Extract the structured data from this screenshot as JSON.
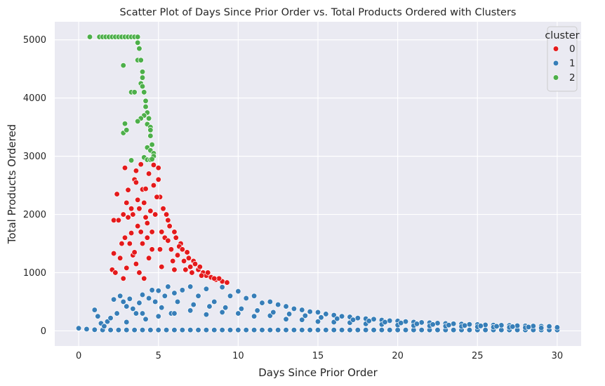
{
  "chart_data": {
    "type": "scatter",
    "title": "Scatter Plot of Days Since Prior Order vs. Total Products Ordered with Clusters",
    "xlabel": "Days Since Prior Order",
    "ylabel": "Total Products Ordered",
    "xlim": [
      -1.5,
      31.5
    ],
    "ylim": [
      -260,
      5310
    ],
    "xticks": [
      0,
      5,
      10,
      15,
      20,
      25,
      30
    ],
    "yticks": [
      0,
      1000,
      2000,
      3000,
      4000,
      5000
    ],
    "grid": true,
    "legend": {
      "title": "cluster",
      "placement": "top-right",
      "entries": [
        "0",
        "1",
        "2"
      ]
    },
    "colors": {
      "0": "#e41a1c",
      "1": "#377eb8",
      "2": "#4daf4a"
    },
    "series": [
      {
        "name": "0",
        "points": [
          [
            2.2,
            1900
          ],
          [
            2.8,
            2000
          ],
          [
            2.9,
            2800
          ],
          [
            2.4,
            2350
          ],
          [
            2.2,
            1330
          ],
          [
            2.1,
            1050
          ],
          [
            2.3,
            1000
          ],
          [
            2.6,
            1250
          ],
          [
            2.8,
            900
          ],
          [
            3.0,
            1080
          ],
          [
            3.2,
            1500
          ],
          [
            3.3,
            1680
          ],
          [
            3.5,
            2600
          ],
          [
            3.6,
            2550
          ],
          [
            3.7,
            2250
          ],
          [
            3.8,
            2100
          ],
          [
            3.9,
            2860
          ],
          [
            4.0,
            2430
          ],
          [
            4.2,
            2440
          ],
          [
            4.3,
            1850
          ],
          [
            4.5,
            2060
          ],
          [
            3.1,
            2420
          ],
          [
            2.5,
            1900
          ],
          [
            2.7,
            1500
          ],
          [
            3.4,
            1300
          ],
          [
            3.6,
            1150
          ],
          [
            3.8,
            1000
          ],
          [
            4.1,
            900
          ],
          [
            4.4,
            1250
          ],
          [
            4.6,
            1700
          ],
          [
            4.8,
            2000
          ],
          [
            5.0,
            2600
          ],
          [
            5.0,
            2800
          ],
          [
            5.1,
            2300
          ],
          [
            5.3,
            2100
          ],
          [
            5.2,
            1700
          ],
          [
            5.4,
            1600
          ],
          [
            5.6,
            1900
          ],
          [
            5.8,
            1400
          ],
          [
            6.0,
            1700
          ],
          [
            6.2,
            1300
          ],
          [
            6.4,
            1500
          ],
          [
            6.6,
            1200
          ],
          [
            6.8,
            1350
          ],
          [
            7.0,
            1100
          ],
          [
            7.2,
            1200
          ],
          [
            7.5,
            1050
          ],
          [
            7.8,
            1000
          ],
          [
            8.0,
            950
          ],
          [
            8.3,
            920
          ],
          [
            8.6,
            880
          ],
          [
            9.0,
            850
          ],
          [
            3.9,
            1700
          ],
          [
            4.0,
            1500
          ],
          [
            4.2,
            1950
          ],
          [
            3.7,
            1800
          ],
          [
            3.3,
            2100
          ],
          [
            3.1,
            1950
          ],
          [
            3.0,
            2200
          ],
          [
            2.9,
            1600
          ],
          [
            4.7,
            2500
          ],
          [
            4.9,
            2300
          ],
          [
            5.5,
            2000
          ],
          [
            5.7,
            1800
          ],
          [
            6.1,
            1600
          ],
          [
            6.3,
            1450
          ],
          [
            6.5,
            1400
          ],
          [
            6.9,
            1250
          ],
          [
            7.3,
            1150
          ],
          [
            7.6,
            1100
          ],
          [
            8.1,
            1000
          ],
          [
            8.8,
            900
          ],
          [
            9.3,
            830
          ],
          [
            5.1,
            1400
          ],
          [
            5.9,
            1200
          ],
          [
            6.7,
            1050
          ],
          [
            7.1,
            1000
          ],
          [
            7.7,
            950
          ],
          [
            8.5,
            900
          ],
          [
            3.5,
            1350
          ],
          [
            4.3,
            1600
          ],
          [
            4.6,
            1400
          ],
          [
            5.2,
            1100
          ],
          [
            5.6,
            1550
          ],
          [
            6.0,
            1050
          ],
          [
            3.4,
            2000
          ],
          [
            4.1,
            2200
          ],
          [
            4.4,
            2700
          ],
          [
            4.7,
            2850
          ],
          [
            3.6,
            2750
          ]
        ]
      },
      {
        "name": "1",
        "points": [
          [
            0,
            45
          ],
          [
            0.5,
            30
          ],
          [
            1.0,
            20
          ],
          [
            1.5,
            15
          ],
          [
            2.0,
            15
          ],
          [
            2.5,
            15
          ],
          [
            3.0,
            15
          ],
          [
            3.5,
            15
          ],
          [
            4.0,
            15
          ],
          [
            4.5,
            15
          ],
          [
            5.0,
            15
          ],
          [
            5.5,
            15
          ],
          [
            6.0,
            15
          ],
          [
            6.5,
            15
          ],
          [
            7.0,
            15
          ],
          [
            7.5,
            15
          ],
          [
            8.0,
            15
          ],
          [
            8.5,
            15
          ],
          [
            9.0,
            15
          ],
          [
            9.5,
            15
          ],
          [
            10.0,
            15
          ],
          [
            10.5,
            15
          ],
          [
            11.0,
            15
          ],
          [
            11.5,
            15
          ],
          [
            12.0,
            15
          ],
          [
            12.5,
            15
          ],
          [
            13.0,
            15
          ],
          [
            13.5,
            15
          ],
          [
            14.0,
            15
          ],
          [
            14.5,
            15
          ],
          [
            15.0,
            15
          ],
          [
            15.5,
            15
          ],
          [
            16.0,
            15
          ],
          [
            16.5,
            15
          ],
          [
            17.0,
            15
          ],
          [
            17.5,
            15
          ],
          [
            18.0,
            15
          ],
          [
            18.5,
            15
          ],
          [
            19.0,
            15
          ],
          [
            19.5,
            15
          ],
          [
            20.0,
            15
          ],
          [
            20.5,
            15
          ],
          [
            21.0,
            15
          ],
          [
            21.5,
            15
          ],
          [
            22.0,
            15
          ],
          [
            22.5,
            15
          ],
          [
            23.0,
            15
          ],
          [
            23.5,
            15
          ],
          [
            24.0,
            15
          ],
          [
            24.5,
            15
          ],
          [
            25.0,
            15
          ],
          [
            25.5,
            15
          ],
          [
            26.0,
            15
          ],
          [
            26.5,
            15
          ],
          [
            27.0,
            15
          ],
          [
            27.5,
            15
          ],
          [
            28.0,
            15
          ],
          [
            28.5,
            15
          ],
          [
            29.0,
            15
          ],
          [
            29.5,
            15
          ],
          [
            30.0,
            15
          ],
          [
            1.0,
            360
          ],
          [
            1.2,
            250
          ],
          [
            1.4,
            130
          ],
          [
            1.6,
            80
          ],
          [
            1.8,
            160
          ],
          [
            2.0,
            220
          ],
          [
            2.2,
            540
          ],
          [
            2.4,
            300
          ],
          [
            2.6,
            600
          ],
          [
            2.8,
            500
          ],
          [
            3.0,
            420
          ],
          [
            3.2,
            550
          ],
          [
            3.4,
            380
          ],
          [
            3.6,
            300
          ],
          [
            3.8,
            480
          ],
          [
            4.0,
            620
          ],
          [
            4.2,
            200
          ],
          [
            4.4,
            560
          ],
          [
            4.6,
            700
          ],
          [
            4.8,
            500
          ],
          [
            5.0,
            690
          ],
          [
            5.2,
            400
          ],
          [
            5.4,
            600
          ],
          [
            5.6,
            760
          ],
          [
            5.8,
            300
          ],
          [
            6.0,
            650
          ],
          [
            6.5,
            700
          ],
          [
            7.0,
            760
          ],
          [
            7.5,
            600
          ],
          [
            8.0,
            720
          ],
          [
            8.5,
            500
          ],
          [
            9.0,
            750
          ],
          [
            9.5,
            600
          ],
          [
            10.0,
            680
          ],
          [
            10.5,
            560
          ],
          [
            11.0,
            600
          ],
          [
            11.5,
            480
          ],
          [
            12.0,
            500
          ],
          [
            12.5,
            450
          ],
          [
            13.0,
            420
          ],
          [
            13.5,
            380
          ],
          [
            14.0,
            360
          ],
          [
            14.5,
            330
          ],
          [
            15.0,
            320
          ],
          [
            15.5,
            290
          ],
          [
            16.0,
            270
          ],
          [
            16.5,
            250
          ],
          [
            17.0,
            240
          ],
          [
            17.5,
            220
          ],
          [
            18.0,
            210
          ],
          [
            18.5,
            200
          ],
          [
            19.0,
            185
          ],
          [
            19.5,
            175
          ],
          [
            20.0,
            170
          ],
          [
            20.5,
            160
          ],
          [
            21.0,
            150
          ],
          [
            21.5,
            145
          ],
          [
            22.0,
            140
          ],
          [
            22.5,
            132
          ],
          [
            23.0,
            127
          ],
          [
            23.5,
            122
          ],
          [
            24.0,
            118
          ],
          [
            24.5,
            112
          ],
          [
            25.0,
            108
          ],
          [
            25.5,
            103
          ],
          [
            26.0,
            100
          ],
          [
            26.5,
            96
          ],
          [
            27.0,
            93
          ],
          [
            27.5,
            89
          ],
          [
            28.0,
            86
          ],
          [
            28.5,
            83
          ],
          [
            29.0,
            80
          ],
          [
            29.5,
            77
          ],
          [
            30.0,
            60
          ],
          [
            3.0,
            150
          ],
          [
            4.0,
            300
          ],
          [
            5.0,
            250
          ],
          [
            6.0,
            300
          ],
          [
            7.0,
            350
          ],
          [
            8.0,
            280
          ],
          [
            9.0,
            320
          ],
          [
            10.0,
            300
          ],
          [
            11.0,
            250
          ],
          [
            12.0,
            260
          ],
          [
            13.0,
            200
          ],
          [
            14.0,
            190
          ],
          [
            15.0,
            160
          ],
          [
            16.0,
            150
          ],
          [
            17.0,
            140
          ],
          [
            18.0,
            120
          ],
          [
            19.0,
            110
          ],
          [
            20.0,
            100
          ],
          [
            21.0,
            90
          ],
          [
            22.0,
            85
          ],
          [
            23.0,
            80
          ],
          [
            24.0,
            75
          ],
          [
            25.0,
            70
          ],
          [
            26.0,
            65
          ],
          [
            27.0,
            60
          ],
          [
            28.0,
            55
          ],
          [
            29.0,
            50
          ],
          [
            6.2,
            500
          ],
          [
            7.2,
            450
          ],
          [
            8.2,
            420
          ],
          [
            9.2,
            400
          ],
          [
            10.2,
            380
          ],
          [
            11.2,
            350
          ],
          [
            12.2,
            320
          ],
          [
            13.2,
            290
          ],
          [
            14.2,
            260
          ],
          [
            15.2,
            230
          ],
          [
            16.2,
            210
          ],
          [
            17.2,
            190
          ],
          [
            18.2,
            170
          ],
          [
            19.2,
            150
          ],
          [
            20.2,
            135
          ],
          [
            21.2,
            120
          ],
          [
            22.2,
            110
          ],
          [
            23.2,
            100
          ],
          [
            24.2,
            92
          ],
          [
            25.2,
            85
          ],
          [
            26.2,
            78
          ],
          [
            27.2,
            72
          ],
          [
            28.2,
            66
          ]
        ]
      },
      {
        "name": "2",
        "points": [
          [
            0.7,
            5050
          ],
          [
            1.3,
            5050
          ],
          [
            1.5,
            5050
          ],
          [
            1.7,
            5050
          ],
          [
            1.9,
            5050
          ],
          [
            2.1,
            5050
          ],
          [
            2.3,
            5050
          ],
          [
            2.5,
            5050
          ],
          [
            2.7,
            5050
          ],
          [
            2.9,
            5050
          ],
          [
            3.1,
            5050
          ],
          [
            3.3,
            5050
          ],
          [
            3.5,
            5050
          ],
          [
            3.7,
            5050
          ],
          [
            3.7,
            4950
          ],
          [
            3.8,
            4850
          ],
          [
            3.7,
            4650
          ],
          [
            3.9,
            4650
          ],
          [
            4.0,
            4450
          ],
          [
            4.0,
            4350
          ],
          [
            3.9,
            4250
          ],
          [
            4.0,
            4200
          ],
          [
            4.1,
            4100
          ],
          [
            3.3,
            4100
          ],
          [
            3.5,
            4100
          ],
          [
            4.2,
            3950
          ],
          [
            4.2,
            3850
          ],
          [
            4.3,
            3750
          ],
          [
            4.1,
            3700
          ],
          [
            3.9,
            3650
          ],
          [
            4.4,
            3650
          ],
          [
            4.3,
            3550
          ],
          [
            4.5,
            3500
          ],
          [
            4.5,
            3450
          ],
          [
            4.5,
            3350
          ],
          [
            4.6,
            3200
          ],
          [
            4.3,
            3150
          ],
          [
            4.5,
            3100
          ],
          [
            4.7,
            3050
          ],
          [
            4.7,
            3000
          ],
          [
            4.1,
            2980
          ],
          [
            4.3,
            2940
          ],
          [
            4.5,
            2940
          ],
          [
            3.3,
            2930
          ],
          [
            2.8,
            4560
          ],
          [
            2.9,
            3560
          ],
          [
            2.8,
            3400
          ],
          [
            3.0,
            3450
          ],
          [
            3.7,
            3600
          ],
          [
            4.6,
            2950
          ]
        ]
      }
    ]
  }
}
